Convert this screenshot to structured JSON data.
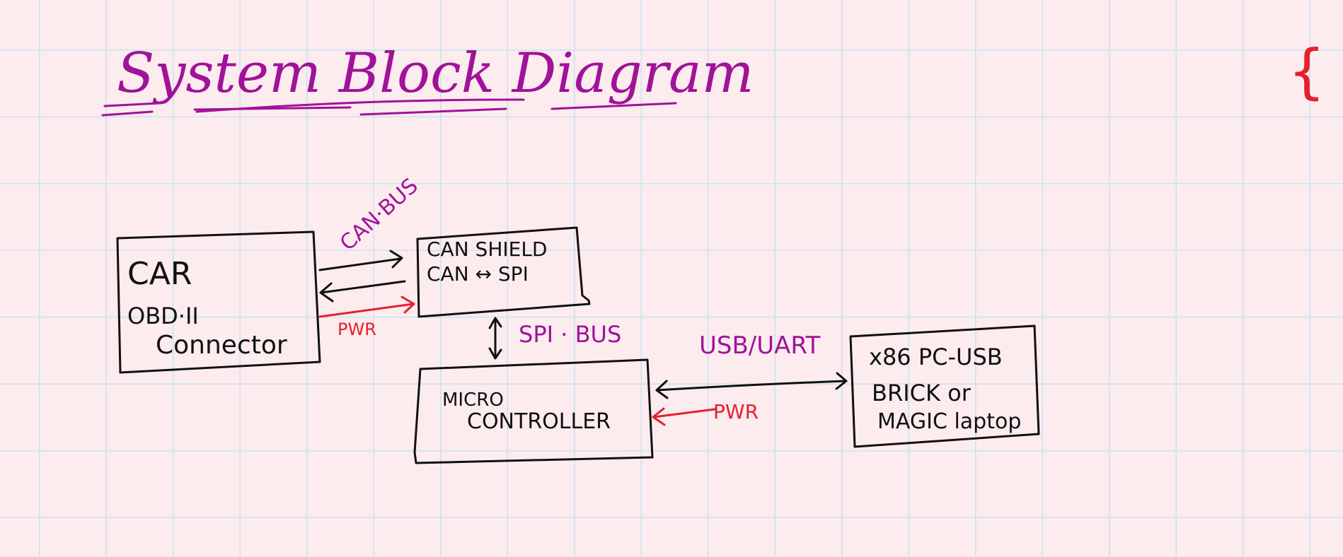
{
  "title": "System Block Diagram",
  "corner_mark": "{",
  "blocks": {
    "car": {
      "line1": "CAR",
      "line2": "OBD·II",
      "line3": "Connector"
    },
    "can_shield": {
      "line1": "CAN SHIELD",
      "line2": "CAN ↔ SPI"
    },
    "micro": {
      "line1": "MICRO",
      "line2": "CONTROLLER"
    },
    "pc": {
      "line1": "x86 PC-USB",
      "line2": "BRICK or",
      "line3": "MAGIC laptop"
    }
  },
  "labels": {
    "can_bus": "CAN·BUS",
    "pwr_top": "PWR",
    "spi_bus": "SPI · BUS",
    "usb_uart": "USB/UART",
    "pwr_bottom": "PWR"
  },
  "colors": {
    "ink": "#111111",
    "annotation": "#a0129a",
    "power": "#e5202e",
    "paper": "#fcecee",
    "grid": "#c7e2f4"
  }
}
